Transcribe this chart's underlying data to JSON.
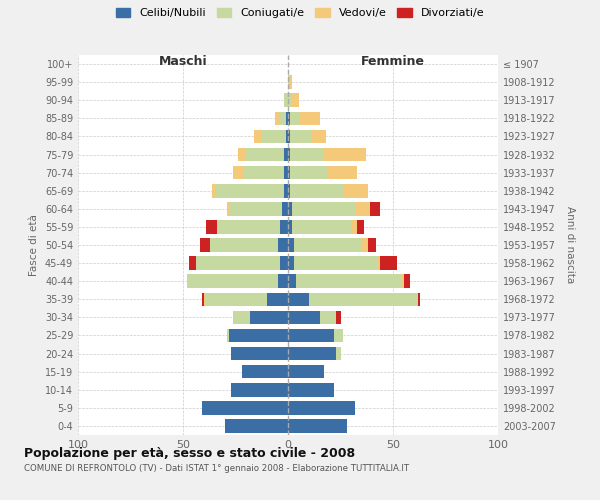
{
  "age_groups": [
    "0-4",
    "5-9",
    "10-14",
    "15-19",
    "20-24",
    "25-29",
    "30-34",
    "35-39",
    "40-44",
    "45-49",
    "50-54",
    "55-59",
    "60-64",
    "65-69",
    "70-74",
    "75-79",
    "80-84",
    "85-89",
    "90-94",
    "95-99",
    "100+"
  ],
  "birth_years": [
    "2003-2007",
    "1998-2002",
    "1993-1997",
    "1988-1992",
    "1983-1987",
    "1978-1982",
    "1973-1977",
    "1968-1972",
    "1963-1967",
    "1958-1962",
    "1953-1957",
    "1948-1952",
    "1943-1947",
    "1938-1942",
    "1933-1937",
    "1928-1932",
    "1923-1927",
    "1918-1922",
    "1913-1917",
    "1908-1912",
    "≤ 1907"
  ],
  "maschi": {
    "celibi": [
      30,
      41,
      27,
      22,
      27,
      28,
      18,
      10,
      5,
      4,
      5,
      4,
      3,
      2,
      2,
      2,
      1,
      1,
      0,
      0,
      0
    ],
    "coniugati": [
      0,
      0,
      0,
      0,
      0,
      1,
      8,
      29,
      43,
      40,
      32,
      30,
      25,
      33,
      19,
      18,
      12,
      3,
      2,
      0,
      0
    ],
    "vedovi": [
      0,
      0,
      0,
      0,
      0,
      0,
      0,
      1,
      0,
      0,
      0,
      0,
      1,
      1,
      5,
      4,
      3,
      2,
      0,
      0,
      0
    ],
    "divorziati": [
      0,
      0,
      0,
      0,
      0,
      0,
      0,
      1,
      0,
      3,
      5,
      5,
      0,
      0,
      0,
      0,
      0,
      0,
      0,
      0,
      0
    ]
  },
  "femmine": {
    "nubili": [
      28,
      32,
      22,
      17,
      23,
      22,
      15,
      10,
      4,
      3,
      3,
      2,
      2,
      1,
      1,
      1,
      1,
      1,
      0,
      0,
      0
    ],
    "coniugate": [
      0,
      0,
      0,
      0,
      2,
      4,
      8,
      52,
      50,
      40,
      32,
      28,
      30,
      25,
      18,
      16,
      10,
      4,
      2,
      1,
      0
    ],
    "vedove": [
      0,
      0,
      0,
      0,
      0,
      0,
      0,
      0,
      1,
      1,
      3,
      3,
      7,
      12,
      14,
      20,
      7,
      10,
      3,
      1,
      0
    ],
    "divorziate": [
      0,
      0,
      0,
      0,
      0,
      0,
      2,
      1,
      3,
      8,
      4,
      3,
      5,
      0,
      0,
      0,
      0,
      0,
      0,
      0,
      0
    ]
  },
  "colors": {
    "celibi": "#3a6ea5",
    "coniugati": "#c5d9a0",
    "vedovi": "#f5c97a",
    "divorziati": "#cc2222"
  },
  "xlim": 100,
  "title": "Popolazione per età, sesso e stato civile - 2008",
  "subtitle": "COMUNE DI REFRONTOLO (TV) - Dati ISTAT 1° gennaio 2008 - Elaborazione TUTTITALIA.IT",
  "ylabel_left": "Fasce di età",
  "ylabel_right": "Anni di nascita",
  "legend_labels": [
    "Celibi/Nubili",
    "Coniugati/e",
    "Vedovi/e",
    "Divorziati/e"
  ],
  "maschi_label": "Maschi",
  "femmine_label": "Femmine",
  "bg_color": "#f0f0f0",
  "plot_bg_color": "#ffffff"
}
